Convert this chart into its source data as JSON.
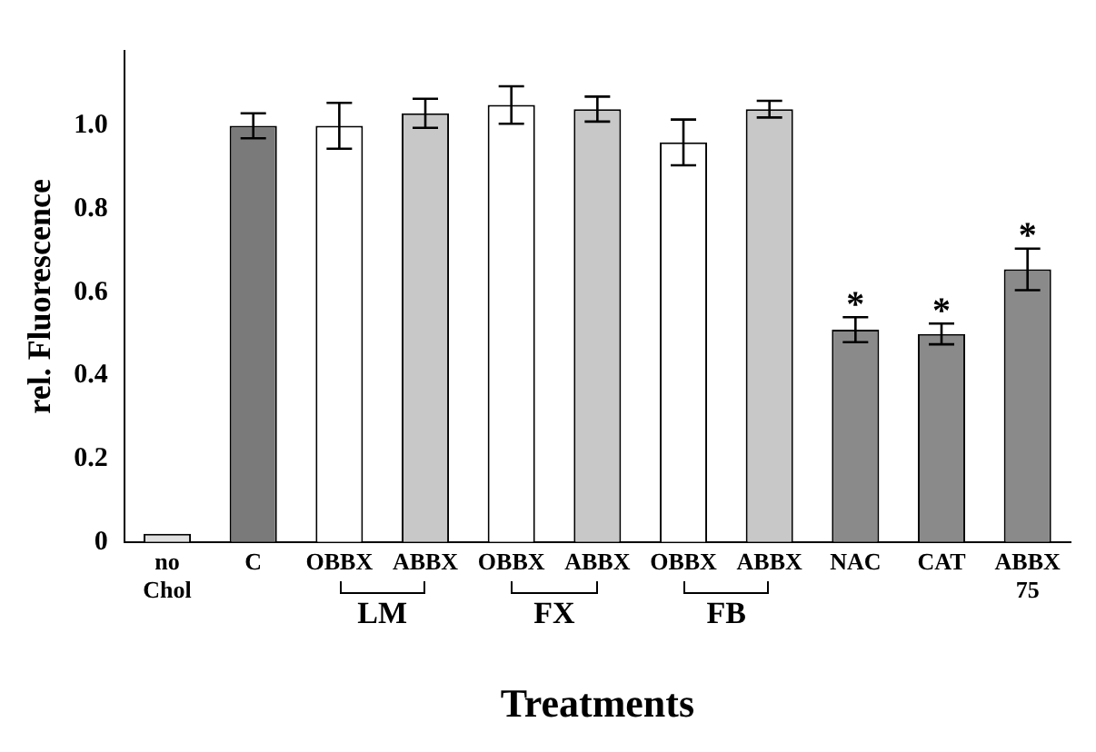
{
  "chart_data": {
    "type": "bar",
    "ylabel": "rel. Fluorescence",
    "xlabel": "Treatments",
    "categories": [
      "no Chol",
      "C",
      "OBBX",
      "ABBX",
      "OBBX",
      "ABBX",
      "OBBX",
      "ABBX",
      "NAC",
      "CAT",
      "ABBX 75"
    ],
    "values": [
      0.02,
      1.0,
      1.0,
      1.03,
      1.05,
      1.04,
      0.96,
      1.04,
      0.51,
      0.5,
      0.655
    ],
    "errors": [
      null,
      0.03,
      0.055,
      0.035,
      0.045,
      0.03,
      0.055,
      0.02,
      0.03,
      0.025,
      0.05
    ],
    "colors": [
      "#e0e0e0",
      "#7a7a7a",
      "#ffffff",
      "#c8c8c8",
      "#ffffff",
      "#c8c8c8",
      "#ffffff",
      "#c8c8c8",
      "#8a8a8a",
      "#8a8a8a",
      "#8a8a8a"
    ],
    "ylim": [
      0,
      1.18
    ],
    "yticks": [
      0,
      0.2,
      0.4,
      0.6,
      0.8,
      {
        "value": 1,
        "label": "1.0"
      }
    ],
    "grid": false,
    "legend": false,
    "annotations": [
      {
        "text": "*",
        "x": "NAC",
        "y": 0.54
      },
      {
        "text": "*",
        "x": "CAT",
        "y": 0.525
      },
      {
        "text": "*",
        "x": "ABBX 75",
        "y": 0.705
      },
      "LM",
      "FX",
      "FB"
    ]
  }
}
